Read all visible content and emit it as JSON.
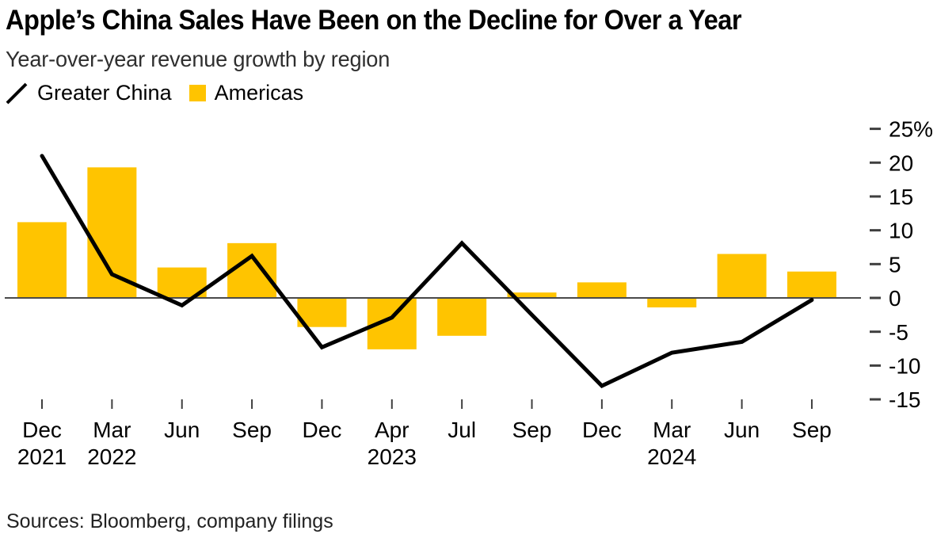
{
  "header": {
    "title": "Apple’s China Sales Have Been on the Decline for Over a Year",
    "subtitle": "Year-over-year revenue growth by region"
  },
  "chart_data": {
    "type": "combo-line-bar",
    "title": "Apple’s China Sales Have Been on the Decline for Over a Year",
    "subtitle": "Year-over-year revenue growth by region",
    "categories": [
      "Dec 2021",
      "Mar 2022",
      "Jun 2022",
      "Sep 2022",
      "Dec 2022",
      "Apr 2023",
      "Jul 2023",
      "Sep 2023",
      "Dec 2023",
      "Mar 2024",
      "Jun 2024",
      "Sep 2024"
    ],
    "x_ticks": [
      {
        "month": "Dec",
        "year": "2021"
      },
      {
        "month": "Mar",
        "year": "2022"
      },
      {
        "month": "Jun",
        "year": ""
      },
      {
        "month": "Sep",
        "year": ""
      },
      {
        "month": "Dec",
        "year": ""
      },
      {
        "month": "Apr",
        "year": "2023"
      },
      {
        "month": "Jul",
        "year": ""
      },
      {
        "month": "Sep",
        "year": ""
      },
      {
        "month": "Dec",
        "year": ""
      },
      {
        "month": "Mar",
        "year": "2024"
      },
      {
        "month": "Jun",
        "year": ""
      },
      {
        "month": "Sep",
        "year": ""
      }
    ],
    "series": [
      {
        "name": "Greater China",
        "type": "line",
        "color": "#000000",
        "values": [
          21.0,
          3.5,
          -1.1,
          6.2,
          -7.3,
          -2.9,
          8.1,
          -2.5,
          -13.0,
          -8.1,
          -6.5,
          -0.3
        ]
      },
      {
        "name": "Americas",
        "type": "bar",
        "color": "#FFC400",
        "values": [
          11.2,
          19.3,
          4.5,
          8.1,
          -4.3,
          -7.6,
          -5.6,
          0.8,
          2.3,
          -1.4,
          6.5,
          3.9
        ]
      }
    ],
    "y_axis": {
      "side": "right",
      "unit": "%",
      "ticks": [
        {
          "value": 25,
          "label": "25%"
        },
        {
          "value": 20,
          "label": "20"
        },
        {
          "value": 15,
          "label": "15"
        },
        {
          "value": 10,
          "label": "10"
        },
        {
          "value": 5,
          "label": "5"
        },
        {
          "value": 0,
          "label": "0"
        },
        {
          "value": -5,
          "label": "-5"
        },
        {
          "value": -10,
          "label": "-10"
        },
        {
          "value": -15,
          "label": "-15"
        }
      ],
      "ylim": [
        -16,
        26
      ]
    },
    "baseline_value": 0,
    "grid": false,
    "legend_position": "top-left"
  },
  "colors": {
    "bar": "#FFC400",
    "line": "#000000",
    "baseline": "#4a4a4a",
    "axis_tick": "#3f3f3f",
    "background": "#ffffff"
  },
  "footer": {
    "sources": "Sources: Bloomberg, company filings"
  }
}
